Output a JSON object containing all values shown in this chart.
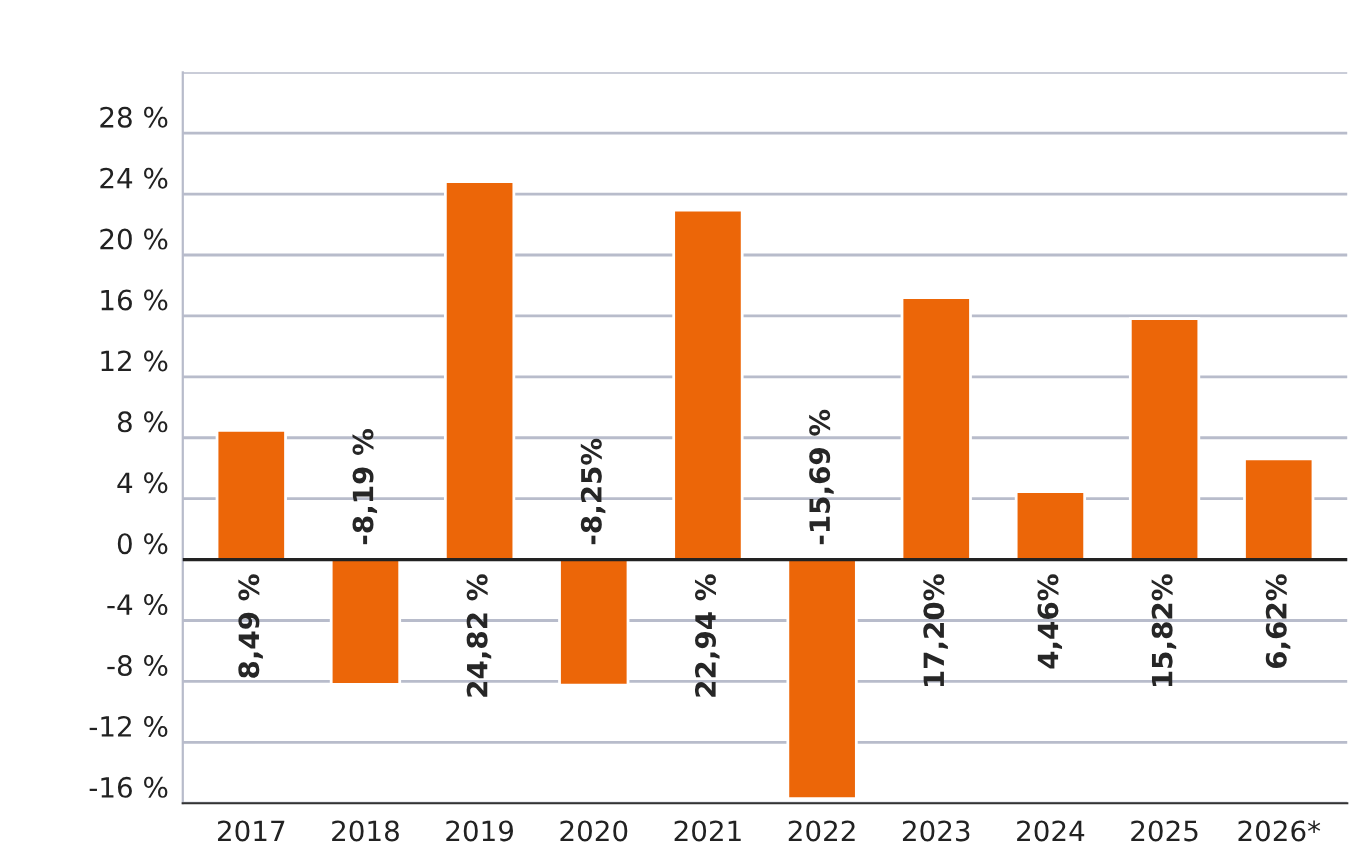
{
  "chart_data": {
    "type": "bar",
    "categories": [
      "2017",
      "2018",
      "2019",
      "2020",
      "2021",
      "2022",
      "2023",
      "2024",
      "2025",
      "2026*"
    ],
    "values": [
      8.49,
      -8.19,
      24.82,
      -8.25,
      22.94,
      -15.69,
      17.2,
      4.46,
      15.82,
      6.62
    ],
    "value_labels": [
      "8,49 %",
      "-8,19 %",
      "24,82 %",
      "-8,25%",
      "22,94 %",
      "-15,69 %",
      "17,20%",
      "4,46%",
      "15,82%",
      "6,62%"
    ],
    "color": "#ec6608",
    "ylim": [
      -16,
      32
    ],
    "yticks": [
      {
        "value": -16,
        "label": "-16 %"
      },
      {
        "value": -12,
        "label": "-12 %"
      },
      {
        "value": -8,
        "label": "-8 %"
      },
      {
        "value": -4,
        "label": "-4 %"
      },
      {
        "value": 0,
        "label": "0 %"
      },
      {
        "value": 4,
        "label": "4 %"
      },
      {
        "value": 8,
        "label": "8 %"
      },
      {
        "value": 12,
        "label": "12 %"
      },
      {
        "value": 16,
        "label": "16 %"
      },
      {
        "value": 20,
        "label": "20 %"
      },
      {
        "value": 24,
        "label": "24 %"
      },
      {
        "value": 28,
        "label": "28 %"
      },
      {
        "value": 32,
        "label": null
      }
    ],
    "ref_lines": [
      {
        "axis": "y",
        "value": 0,
        "color": "#222222"
      }
    ],
    "grid": "y"
  }
}
